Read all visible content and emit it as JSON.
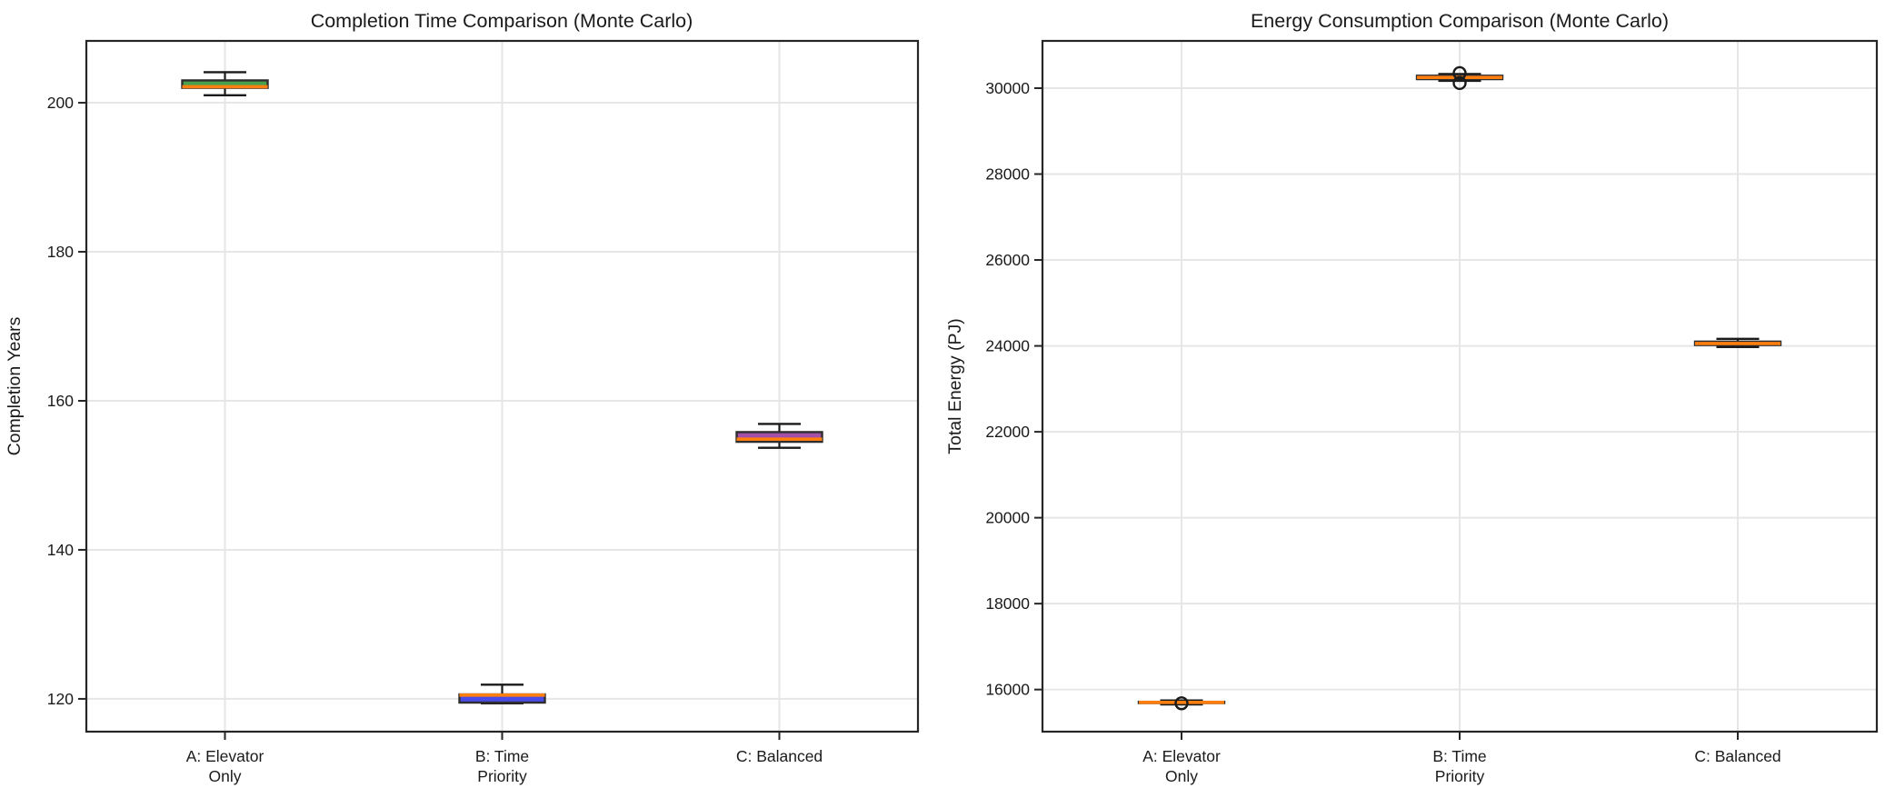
{
  "figure": {
    "background": "#ffffff",
    "panel_count": 2
  },
  "chart_data": [
    {
      "type": "box",
      "title": "Completion Time Comparison (Monte Carlo)",
      "ylabel": "Completion Years",
      "xlabel": "",
      "ylim": [
        115.6,
        208.3
      ],
      "yticks": [
        120,
        140,
        160,
        180,
        200
      ],
      "grid": true,
      "legend": "none",
      "categories": [
        [
          "A: Elevator",
          "Only"
        ],
        [
          "B: Time",
          "Priority"
        ],
        [
          "C: Balanced"
        ]
      ],
      "boxes": [
        {
          "label": "A: Elevator Only",
          "whislo": 201.0,
          "q1": 202.0,
          "med": 202.15,
          "q3": 203.0,
          "whishi": 204.1,
          "fill": "#4aa04a",
          "outliers": []
        },
        {
          "label": "B: Time Priority",
          "whislo": 119.4,
          "q1": 119.5,
          "med": 120.5,
          "q3": 120.6,
          "whishi": 121.9,
          "fill": "#4b4be8",
          "outliers": []
        },
        {
          "label": "C: Balanced",
          "whislo": 153.7,
          "q1": 154.5,
          "med": 154.85,
          "q3": 155.8,
          "whishi": 156.9,
          "fill": "#a44fa8",
          "outliers": []
        }
      ],
      "colors": {
        "median": "#ff7f0e",
        "box_edge": "#2e2e2e",
        "whisker": "#1a1a1a",
        "grid": "#e6e6e6",
        "spine": "#262626",
        "text": "#1a1a1a"
      }
    },
    {
      "type": "box",
      "title": "Energy Consumption Comparison (Monte Carlo)",
      "ylabel": "Total Energy (PJ)",
      "xlabel": "",
      "ylim": [
        15020,
        31100
      ],
      "yticks": [
        16000,
        18000,
        20000,
        22000,
        24000,
        26000,
        28000,
        30000
      ],
      "grid": true,
      "legend": "none",
      "categories": [
        [
          "A: Elevator",
          "Only"
        ],
        [
          "B: Time",
          "Priority"
        ],
        [
          "C: Balanced"
        ]
      ],
      "boxes": [
        {
          "label": "A: Elevator Only",
          "whislo": 15655,
          "q1": 15685,
          "med": 15700,
          "q3": 15715,
          "whishi": 15745,
          "fill": "#ffffff",
          "outliers": [
            15680
          ]
        },
        {
          "label": "B: Time Priority",
          "whislo": 30170,
          "q1": 30210,
          "med": 30250,
          "q3": 30290,
          "whishi": 30330,
          "fill": "#ffffff",
          "outliers": [
            30350,
            30120
          ]
        },
        {
          "label": "C: Balanced",
          "whislo": 23975,
          "q1": 24020,
          "med": 24055,
          "q3": 24100,
          "whishi": 24165,
          "fill": "#ffffff",
          "outliers": []
        }
      ],
      "colors": {
        "median": "#ff7f0e",
        "box_edge": "#2e2e2e",
        "whisker": "#1a1a1a",
        "grid": "#e6e6e6",
        "spine": "#262626",
        "text": "#1a1a1a"
      }
    }
  ]
}
